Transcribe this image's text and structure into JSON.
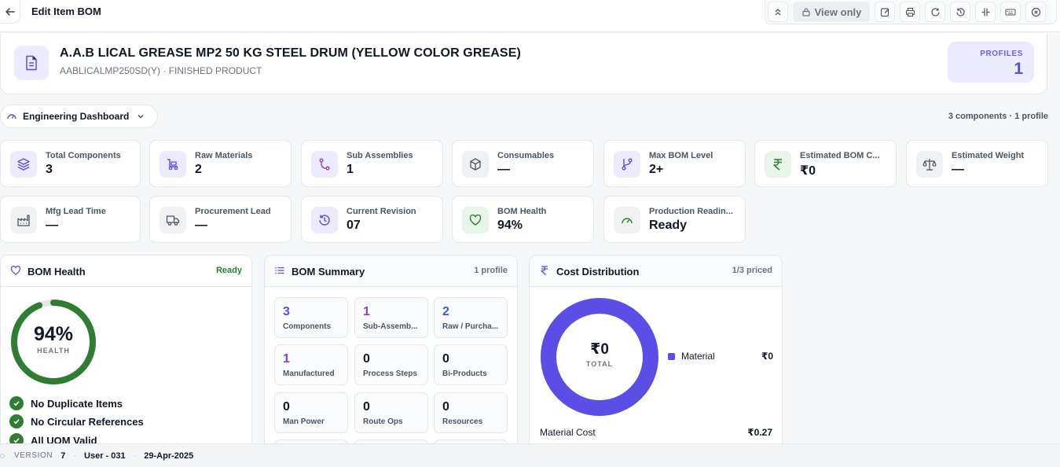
{
  "topbar": {
    "title": "Edit Item BOM",
    "view_only_label": "View only"
  },
  "item": {
    "name": "A.A.B LICAL GREASE MP2 50 KG STEEL DRUM (YELLOW COLOR GREASE)",
    "subtitle": "AABLICALMP250SD(Y) · FINISHED PRODUCT",
    "profiles_label": "PROFILES",
    "profiles_count": "1"
  },
  "dashboard": {
    "selected": "Engineering Dashboard",
    "summary": "3 components · 1 profile"
  },
  "metrics": [
    {
      "label": "Total Components",
      "value": "3",
      "icon": "layers-icon"
    },
    {
      "label": "Raw Materials",
      "value": "2",
      "icon": "truck-loading-icon"
    },
    {
      "label": "Sub Assemblies",
      "value": "1",
      "icon": "branch-icon"
    },
    {
      "label": "Consumables",
      "value": "—",
      "icon": "box-icon"
    },
    {
      "label": "Max BOM Level",
      "value": "2+",
      "icon": "git-branch-icon"
    },
    {
      "label": "Estimated BOM C...",
      "value": "₹0",
      "icon": "rupee-icon"
    },
    {
      "label": "Estimated Weight",
      "value": "—",
      "icon": "scale-icon"
    },
    {
      "label": "Mfg Lead Time",
      "value": "—",
      "icon": "factory-icon"
    },
    {
      "label": "Procurement Lead",
      "value": "—",
      "icon": "truck-icon"
    },
    {
      "label": "Current Revision",
      "value": "07",
      "icon": "history-icon"
    },
    {
      "label": "BOM Health",
      "value": "94%",
      "icon": "heart-icon"
    },
    {
      "label": "Production Readin...",
      "value": "Ready",
      "icon": "gauge-icon"
    }
  ],
  "health_panel": {
    "title": "BOM Health",
    "badge": "Ready",
    "percent": 94,
    "percent_label": "94%",
    "caption": "HEALTH",
    "checks": [
      "No Duplicate Items",
      "No Circular References",
      "All UOM Valid"
    ]
  },
  "summary_panel": {
    "title": "BOM Summary",
    "badge": "1 profile",
    "tiles": [
      {
        "value": "3",
        "label": "Components"
      },
      {
        "value": "1",
        "label": "Sub-Assemb..."
      },
      {
        "value": "2",
        "label": "Raw / Purcha..."
      },
      {
        "value": "1",
        "label": "Manufactured"
      },
      {
        "value": "0",
        "label": "Process Steps"
      },
      {
        "value": "0",
        "label": "Bi-Products"
      },
      {
        "value": "0",
        "label": "Man Power"
      },
      {
        "value": "0",
        "label": "Route Ops"
      },
      {
        "value": "0",
        "label": "Resources"
      }
    ]
  },
  "cost_panel": {
    "title": "Cost Distribution",
    "badge": "1/3 priced",
    "total_value": "₹0",
    "total_label": "TOTAL",
    "legend": [
      {
        "name": "Material",
        "value": "₹0"
      }
    ],
    "material_cost_label": "Material Cost",
    "material_cost_value": "₹0.27"
  },
  "footer": {
    "version_label": "VERSION",
    "version": "7",
    "user": "User - 031",
    "date": "29-Apr-2025"
  },
  "colors": {
    "accent": "#5b4de6",
    "health": "#2e7d32",
    "ready": "#2e7d32"
  }
}
